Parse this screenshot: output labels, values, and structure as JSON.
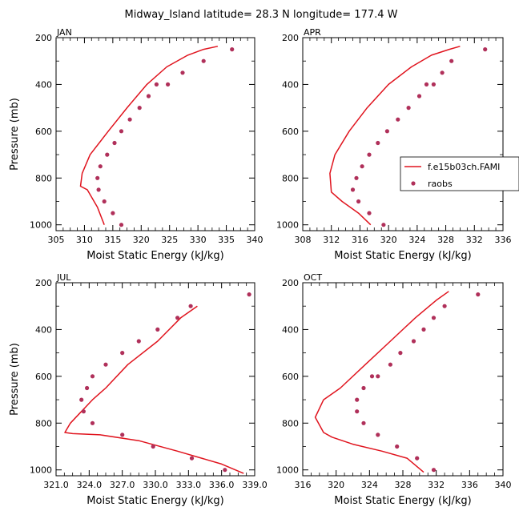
{
  "figure": {
    "title": "Midway_Island  latitude= 28.3 N longitude= 177.4 W"
  },
  "legend": {
    "model_label": "f.e15b03ch.FAMI",
    "obs_label": "raobs",
    "model_color": "#e0141e",
    "obs_color": "#b0305a"
  },
  "chart_data": [
    {
      "type": "line",
      "title": "JAN",
      "xlabel": "Moist Static Energy (kJ/kg)",
      "ylabel": "Pressure (mb)",
      "xlim": [
        305,
        340
      ],
      "xticks": [
        305,
        310,
        315,
        320,
        325,
        330,
        335,
        340
      ],
      "xtick_labels": [
        "305",
        "310",
        "315",
        "320",
        "325",
        "330",
        "335",
        "340"
      ],
      "ylim": [
        1025,
        200
      ],
      "yticks": [
        200,
        400,
        600,
        800,
        1000
      ],
      "ytick_labels": [
        "200",
        "400",
        "600",
        "800",
        "1000"
      ],
      "series": [
        {
          "name": "f.e15b03ch.FAMI",
          "kind": "line",
          "x": [
            313.5,
            312.3,
            310.5,
            309.3,
            309.6,
            311.0,
            314.2,
            317.5,
            321.0,
            324.5,
            328.2,
            331.0,
            333.5
          ],
          "y": [
            1000,
            925,
            850,
            835,
            780,
            700,
            600,
            500,
            400,
            325,
            275,
            250,
            237
          ]
        },
        {
          "name": "raobs",
          "kind": "scatter",
          "x": [
            316.5,
            315.0,
            313.5,
            312.5,
            312.3,
            312.8,
            314.0,
            315.3,
            316.5,
            318.0,
            319.7,
            321.3,
            322.7,
            324.7,
            327.3,
            331.0,
            336.0
          ],
          "y": [
            1000,
            950,
            900,
            850,
            800,
            750,
            700,
            650,
            600,
            550,
            500,
            450,
            400,
            400,
            350,
            300,
            250
          ]
        }
      ]
    },
    {
      "type": "line",
      "title": "APR",
      "xlabel": "Moist Static Energy (kJ/kg)",
      "ylabel": "",
      "xlim": [
        308,
        336
      ],
      "xticks": [
        308,
        312,
        316,
        320,
        324,
        328,
        332,
        336
      ],
      "xtick_labels": [
        "308",
        "312",
        "316",
        "320",
        "324",
        "328",
        "332",
        "336"
      ],
      "ylim": [
        1025,
        200
      ],
      "yticks": [
        200,
        400,
        600,
        800,
        1000
      ],
      "ytick_labels": [
        "200",
        "400",
        "600",
        "800",
        "1000"
      ],
      "series": [
        {
          "name": "f.e15b03ch.FAMI",
          "kind": "line",
          "x": [
            317.5,
            315.8,
            313.5,
            312.0,
            311.8,
            312.5,
            314.5,
            317.0,
            320.0,
            323.2,
            326.0,
            328.5,
            330.0
          ],
          "y": [
            1000,
            950,
            900,
            860,
            780,
            700,
            600,
            500,
            400,
            325,
            275,
            250,
            237
          ]
        },
        {
          "name": "raobs",
          "kind": "scatter",
          "x": [
            319.3,
            317.3,
            315.8,
            315.0,
            315.5,
            316.3,
            317.3,
            318.5,
            319.8,
            321.3,
            322.8,
            324.3,
            325.3,
            326.3,
            327.5,
            328.8,
            333.5
          ],
          "y": [
            1000,
            950,
            900,
            850,
            800,
            750,
            700,
            650,
            600,
            550,
            500,
            450,
            400,
            400,
            350,
            300,
            250
          ]
        }
      ]
    },
    {
      "type": "line",
      "title": "JUL",
      "xlabel": "Moist Static Energy (kJ/kg)",
      "ylabel": "Pressure (mb)",
      "xlim": [
        321,
        339
      ],
      "xticks": [
        321,
        324,
        327,
        330,
        333,
        336,
        339
      ],
      "xtick_labels": [
        "321.0",
        "324.0",
        "327.0",
        "330.0",
        "333.0",
        "336.0",
        "339.0"
      ],
      "ylim": [
        1025,
        200
      ],
      "yticks": [
        200,
        400,
        600,
        800,
        1000
      ],
      "ytick_labels": [
        "200",
        "400",
        "600",
        "800",
        "1000"
      ],
      "series": [
        {
          "name": "f.e15b03ch.FAMI",
          "kind": "line",
          "x": [
            338.0,
            336.0,
            332.0,
            328.5,
            325.0,
            322.5,
            321.8,
            322.3,
            323.3,
            324.3,
            325.5,
            327.5,
            330.2,
            332.3,
            333.8
          ],
          "y": [
            1015,
            975,
            920,
            875,
            850,
            845,
            840,
            800,
            750,
            700,
            650,
            550,
            450,
            350,
            300
          ]
        },
        {
          "name": "raobs",
          "kind": "scatter",
          "x": [
            336.3,
            333.3,
            329.8,
            327.0,
            324.3,
            323.5,
            323.3,
            323.8,
            324.3,
            325.5,
            327.0,
            328.5,
            330.2,
            332.0,
            333.2,
            338.5
          ],
          "y": [
            1000,
            950,
            900,
            850,
            800,
            750,
            700,
            650,
            600,
            550,
            500,
            450,
            400,
            350,
            300,
            250
          ]
        }
      ]
    },
    {
      "type": "line",
      "title": "OCT",
      "xlabel": "Moist Static Energy (kJ/kg)",
      "ylabel": "",
      "xlim": [
        316,
        340
      ],
      "xticks": [
        316,
        320,
        324,
        328,
        332,
        336,
        340
      ],
      "xtick_labels": [
        "316",
        "320",
        "324",
        "328",
        "332",
        "336",
        "340"
      ],
      "ylim": [
        1025,
        200
      ],
      "yticks": [
        200,
        400,
        600,
        800,
        1000
      ],
      "ytick_labels": [
        "200",
        "400",
        "600",
        "800",
        "1000"
      ],
      "series": [
        {
          "name": "f.e15b03ch.FAMI",
          "kind": "line",
          "x": [
            330.5,
            328.5,
            325.5,
            322.0,
            319.5,
            318.5,
            317.5,
            318.5,
            320.5,
            323.5,
            326.5,
            329.5,
            332.0,
            333.5
          ],
          "y": [
            1010,
            950,
            920,
            890,
            860,
            840,
            775,
            700,
            650,
            550,
            450,
            350,
            275,
            237
          ]
        },
        {
          "name": "raobs",
          "kind": "scatter",
          "x": [
            331.7,
            329.7,
            327.3,
            325.0,
            323.3,
            322.5,
            322.5,
            323.3,
            324.3,
            325.0,
            326.5,
            327.7,
            329.3,
            330.5,
            331.7,
            333.0,
            337.0
          ],
          "y": [
            1000,
            950,
            900,
            850,
            800,
            750,
            700,
            650,
            600,
            600,
            550,
            500,
            450,
            400,
            350,
            300,
            250
          ]
        }
      ]
    }
  ]
}
